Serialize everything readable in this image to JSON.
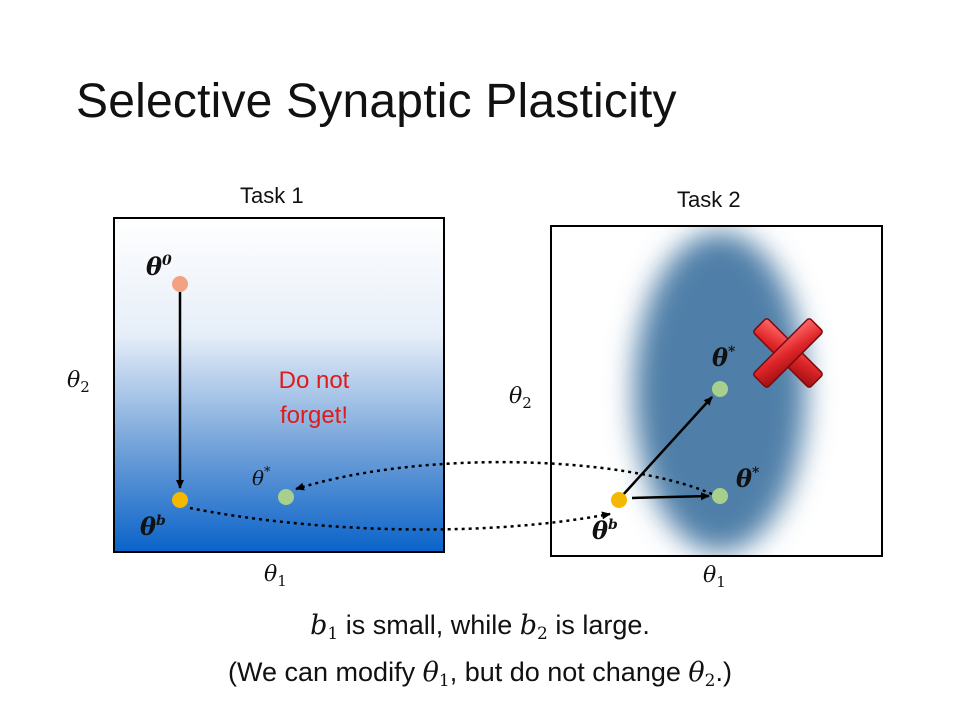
{
  "title": "Selective Synaptic Plasticity",
  "task1": {
    "label": "Task 1",
    "theta0": "θ",
    "theta0_sup": "0",
    "thetab": "θ",
    "thetab_sup": "b",
    "thetastar": "θ",
    "thetastar_sup": "*",
    "warning_line1": "Do not",
    "warning_line2": "forget!",
    "axis_x": "θ",
    "axis_x_sub": "1",
    "axis_y": "θ",
    "axis_y_sub": "2"
  },
  "task2": {
    "label": "Task 2",
    "thetab": "θ",
    "thetab_sup": "b",
    "thetastar_top": "θ",
    "thetastar_top_sup": "*",
    "thetastar_right": "θ",
    "thetastar_right_sup": "*",
    "axis_x": "θ",
    "axis_x_sub": "1",
    "axis_y": "θ",
    "axis_y_sub": "2"
  },
  "caption": {
    "line1_b1": "b",
    "line1_b1_sub": "1",
    "line1_mid": " is small, while ",
    "line1_b2": "b",
    "line1_b2_sub": "2",
    "line1_end": " is large.",
    "line2_start": "(We can modify ",
    "line2_t1": "θ",
    "line2_t1_sub": "1",
    "line2_mid": ", but do not change ",
    "line2_t2": "θ",
    "line2_t2_sub": "2",
    "line2_end": ".)"
  },
  "colors": {
    "gradient_top": "#ffffff",
    "gradient_bottom": "#0a63c9",
    "ellipse": "#4f7fa8",
    "theta0_dot": "#f2a183",
    "thetab_dot": "#f5b800",
    "thetastar_dot": "#a8d08d",
    "cross": "#e0262a",
    "warning_text": "#e01a1a"
  }
}
